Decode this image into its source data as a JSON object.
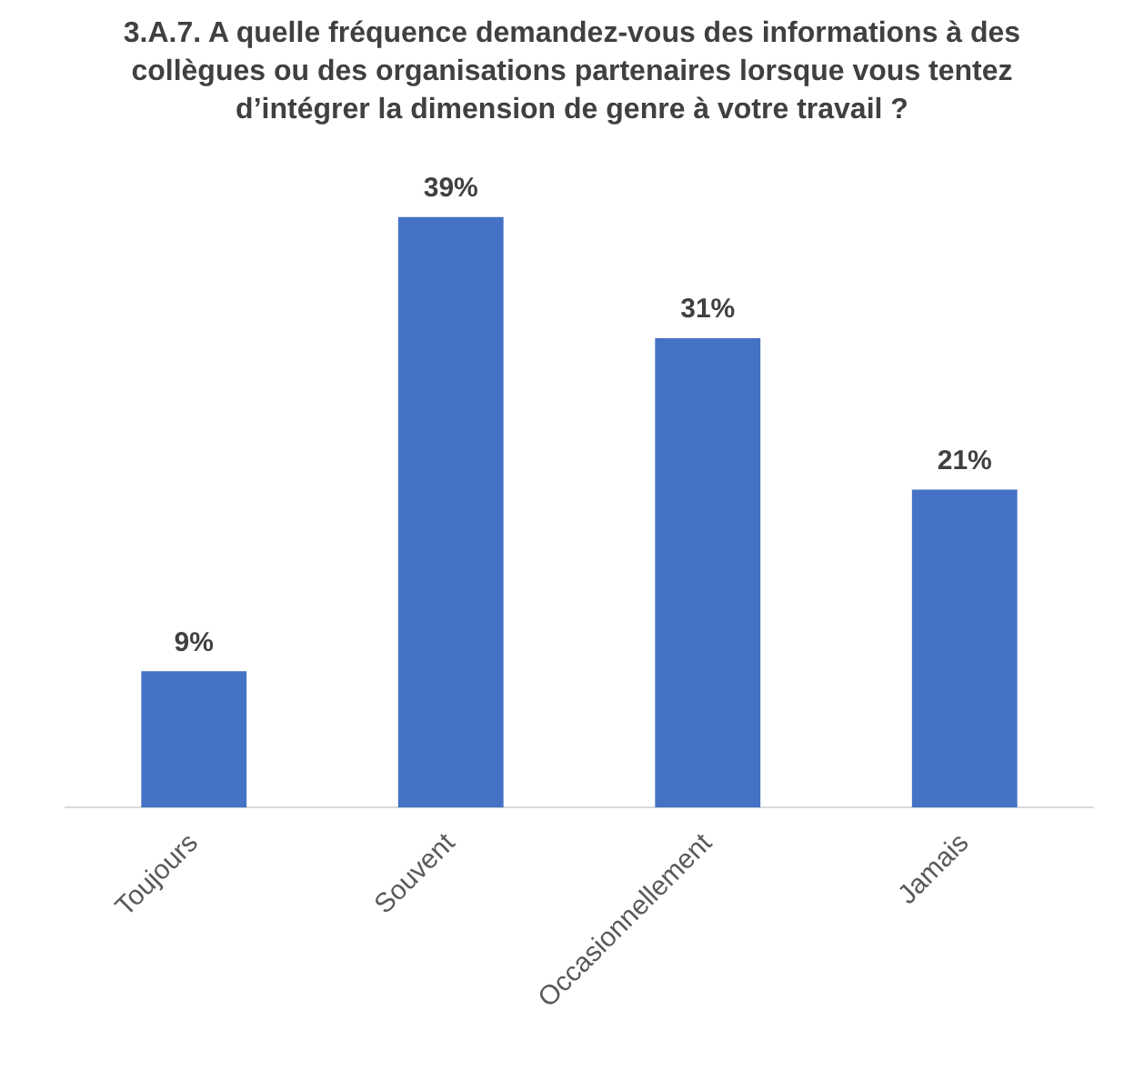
{
  "chart_data": {
    "type": "bar",
    "title": "3.A.7. A quelle fréquence demandez-vous des informations à des collègues ou des organisations partenaires lorsque vous tentez d’intégrer la dimension de genre à votre travail ?",
    "categories": [
      "Toujours",
      "Souvent",
      "Occasionnellement",
      "Jamais"
    ],
    "values": [
      9,
      39,
      31,
      21
    ],
    "color": "#4472c4",
    "value_labels": [
      "9%",
      "39%",
      "31%",
      "21%"
    ],
    "relative": false
  }
}
